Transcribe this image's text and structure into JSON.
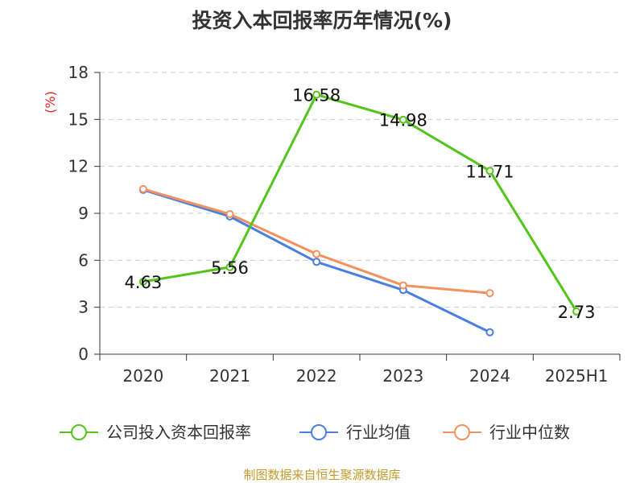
{
  "chart_data": {
    "type": "line",
    "title": "投资入本回报率历年情况(%)",
    "ylabel": "(%)",
    "xlabel": "",
    "categories": [
      "2020",
      "2021",
      "2022",
      "2023",
      "2024",
      "2025H1"
    ],
    "ylim": [
      0,
      18
    ],
    "yticks": [
      0,
      3,
      6,
      9,
      12,
      15,
      18
    ],
    "grid": true,
    "legend_position": "bottom",
    "series": [
      {
        "name": "公司投入资本回报率",
        "color": "#52c41a",
        "values": [
          4.63,
          5.56,
          16.58,
          14.98,
          11.71,
          2.73
        ],
        "show_labels": true
      },
      {
        "name": "行业均值",
        "color": "#4a7ee0",
        "values": [
          10.5,
          8.8,
          5.9,
          4.1,
          1.4,
          null
        ],
        "show_labels": false
      },
      {
        "name": "行业中位数",
        "color": "#f59060",
        "values": [
          10.55,
          8.95,
          6.4,
          4.4,
          3.9,
          null
        ],
        "show_labels": false
      }
    ]
  },
  "footer": "制图数据来自恒生聚源数据库"
}
